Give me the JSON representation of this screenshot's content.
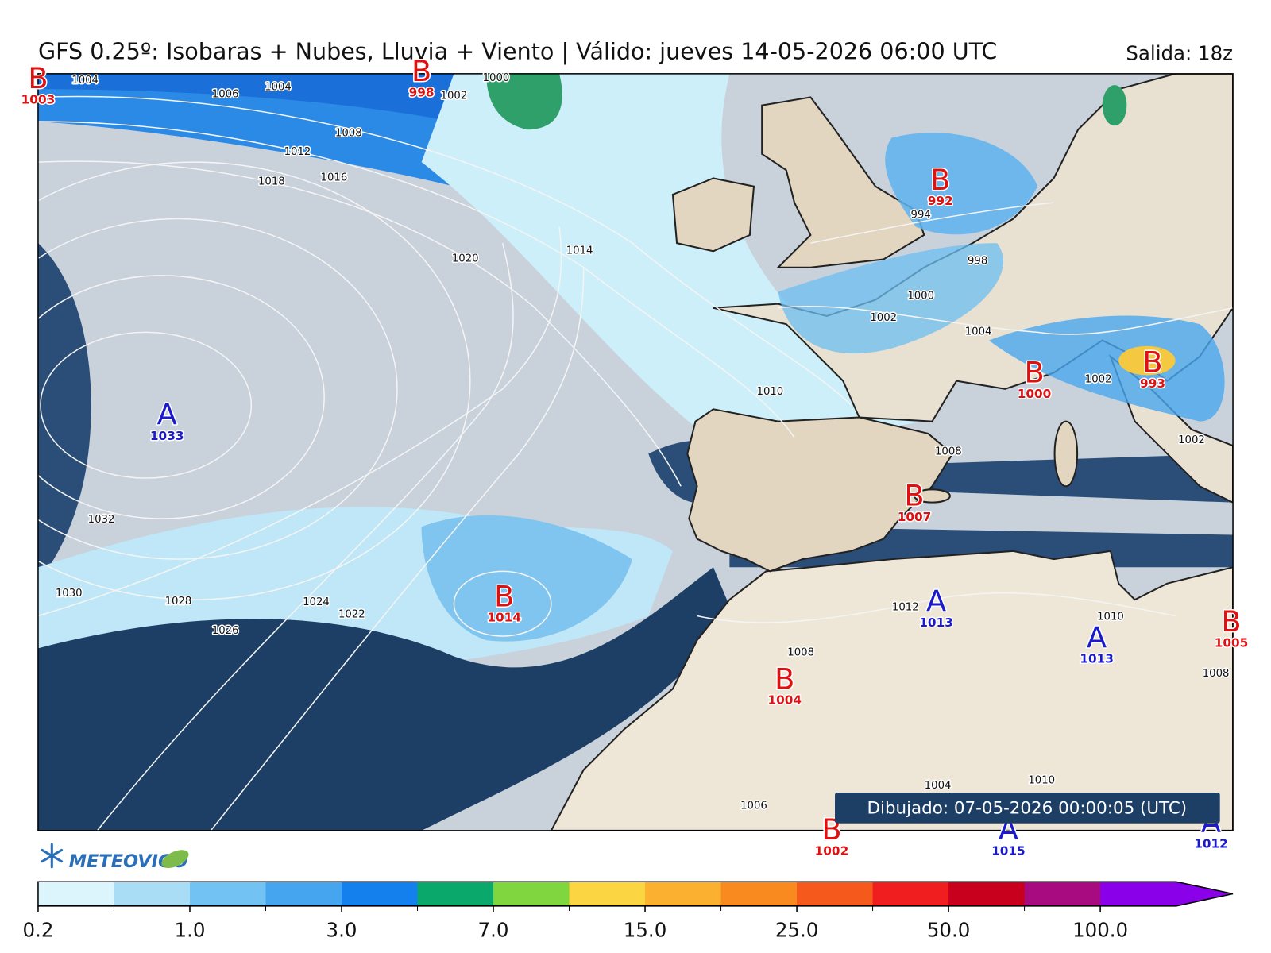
{
  "header": {
    "title": "GFS 0.25º: Isobaras + Nubes, Lluvia + Viento | Válido: jueves 14-05-2026 06:00 UTC",
    "run": "Salida: 18z"
  },
  "map": {
    "pressure_centers": [
      {
        "symbol": "B",
        "value": 1003
      },
      {
        "symbol": "B",
        "value": 998
      },
      {
        "symbol": "B",
        "value": 992
      },
      {
        "symbol": "A",
        "value": 1033
      },
      {
        "symbol": "B",
        "value": 1000
      },
      {
        "symbol": "B",
        "value": 993
      },
      {
        "symbol": "B",
        "value": 1007
      },
      {
        "symbol": "B",
        "value": 1014
      },
      {
        "symbol": "A",
        "value": 1013
      },
      {
        "symbol": "A",
        "value": 1013
      },
      {
        "symbol": "B",
        "value": 1005
      },
      {
        "symbol": "B",
        "value": 1004
      },
      {
        "symbol": "B",
        "value": 1002
      },
      {
        "symbol": "A",
        "value": 1015
      },
      {
        "symbol": "A",
        "value": 1012
      }
    ],
    "isobar_labels": [
      1004,
      1006,
      1004,
      1008,
      1012,
      1016,
      1018,
      1020,
      1014,
      1032,
      1030,
      1028,
      1026,
      1024,
      1022,
      994,
      998,
      1000,
      1002,
      1004,
      1010,
      1002,
      1002,
      1008,
      1012,
      1008,
      1010,
      1008,
      1010,
      1004,
      1006,
      1000,
      1002
    ],
    "timestamp": "Dibujado: 07-05-2026 00:00:05 (UTC)"
  },
  "logo": "METEOVIGO",
  "colorbar": {
    "colors": [
      "#dcf5fc",
      "#a9ddf6",
      "#72c2f3",
      "#45a5ef",
      "#1480ee",
      "#0aa86b",
      "#7fd63f",
      "#fbd542",
      "#fbb030",
      "#f98a20",
      "#f55a1c",
      "#f01e1e",
      "#c8001e",
      "#a80a80",
      "#8a00e8"
    ],
    "ticks": [
      0.2,
      {
        "value": 1,
        "label": "1.0"
      },
      {
        "value": 3,
        "label": "3.0"
      },
      {
        "value": 7,
        "label": "7.0"
      },
      {
        "value": 15,
        "label": "15.0"
      },
      {
        "value": 25,
        "label": "25.0"
      },
      {
        "value": 50,
        "label": "50.0"
      },
      {
        "value": 100,
        "label": "100.0"
      }
    ]
  }
}
